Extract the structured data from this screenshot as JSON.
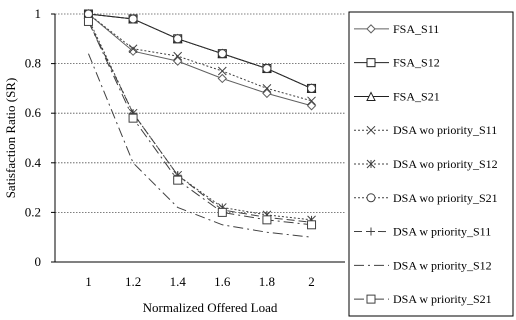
{
  "chart_data": {
    "type": "line",
    "xlabel": "Normalized Offered Load",
    "ylabel": "Satisfaction Ratio (SR)",
    "x": [
      1,
      1.2,
      1.4,
      1.6,
      1.8,
      2
    ],
    "x_tick_labels": [
      "1",
      "1.2",
      "1.4",
      "1.6",
      "1.8",
      "2"
    ],
    "xlim": [
      0.85,
      2.15
    ],
    "ylim": [
      0,
      1
    ],
    "y_ticks": [
      0,
      0.2,
      0.4,
      0.6,
      0.8,
      1
    ],
    "y_tick_labels": [
      "0",
      "0.2",
      "0.4",
      "0.6",
      "0.8",
      "1"
    ],
    "grid": "horizontal dotted",
    "legend_position": "right, outside plot",
    "series": [
      {
        "name": "FSA_S11",
        "values": [
          1.0,
          0.85,
          0.81,
          0.74,
          0.68,
          0.63
        ],
        "marker": "diamond",
        "dash": "solid",
        "color": "#606060"
      },
      {
        "name": "FSA_S12",
        "values": [
          1.0,
          0.98,
          0.9,
          0.84,
          0.78,
          0.7
        ],
        "marker": "square",
        "dash": "solid",
        "color": "#202020"
      },
      {
        "name": "FSA_S21",
        "values": [
          1.0,
          0.98,
          0.9,
          0.84,
          0.78,
          0.7
        ],
        "marker": "triangle",
        "dash": "solid",
        "color": "#202020"
      },
      {
        "name": "DSA wo priority_S11",
        "values": [
          1.0,
          0.86,
          0.83,
          0.77,
          0.7,
          0.65
        ],
        "marker": "x",
        "dash": "dotted",
        "color": "#404040"
      },
      {
        "name": "DSA wo priority_S12",
        "values": [
          0.98,
          0.6,
          0.35,
          0.22,
          0.19,
          0.17
        ],
        "marker": "star",
        "dash": "dotted",
        "color": "#404040"
      },
      {
        "name": "DSA wo priority_S21",
        "values": [
          1.0,
          0.98,
          0.9,
          0.84,
          0.78,
          0.7
        ],
        "marker": "circle",
        "dash": "dotted",
        "color": "#404040"
      },
      {
        "name": "DSA w priority_S11",
        "values": [
          0.97,
          0.6,
          0.35,
          0.21,
          0.18,
          0.16
        ],
        "marker": "plus",
        "dash": "longdash",
        "color": "#404040"
      },
      {
        "name": "DSA w priority_S12",
        "values": [
          0.84,
          0.4,
          0.22,
          0.15,
          0.12,
          0.1
        ],
        "marker": "none",
        "dash": "dashdot",
        "color": "#404040"
      },
      {
        "name": "DSA w priority_S21",
        "values": [
          0.97,
          0.58,
          0.33,
          0.2,
          0.17,
          0.15
        ],
        "marker": "square",
        "dash": "dashdot",
        "color": "#404040"
      }
    ]
  }
}
